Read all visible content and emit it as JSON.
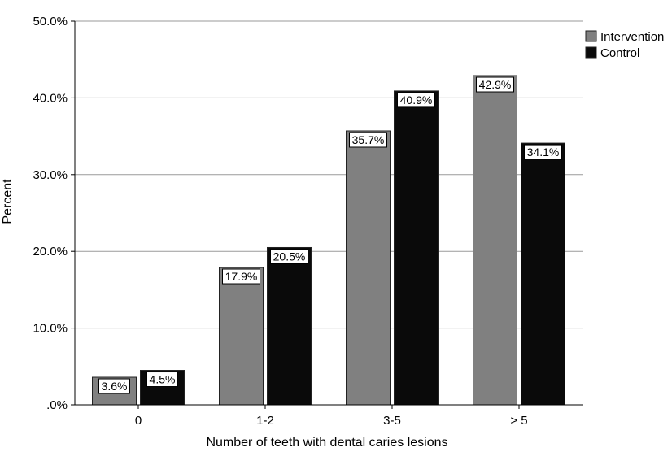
{
  "chart_data": {
    "type": "bar",
    "xlabel": "Number of teeth with dental caries lesions",
    "ylabel": "Percent",
    "categories": [
      "0",
      "1-2",
      "3-5",
      "> 5"
    ],
    "ylim": [
      0,
      50
    ],
    "yticks": [
      0,
      10,
      20,
      30,
      40,
      50
    ],
    "ytick_labels": [
      ".0%",
      "10.0%",
      "20.0%",
      "30.0%",
      "40.0%",
      "50.0%"
    ],
    "grid": true,
    "legend_position": "top-right",
    "series": [
      {
        "name": "Intervention",
        "color": "#808080",
        "values": [
          3.6,
          17.9,
          35.7,
          42.9
        ],
        "labels": [
          "3.6%",
          "17.9%",
          "35.7%",
          "42.9%"
        ]
      },
      {
        "name": "Control",
        "color": "#0a0a0a",
        "values": [
          4.5,
          20.5,
          40.9,
          34.1
        ],
        "labels": [
          "4.5%",
          "20.5%",
          "40.9%",
          "34.1%"
        ]
      }
    ]
  }
}
